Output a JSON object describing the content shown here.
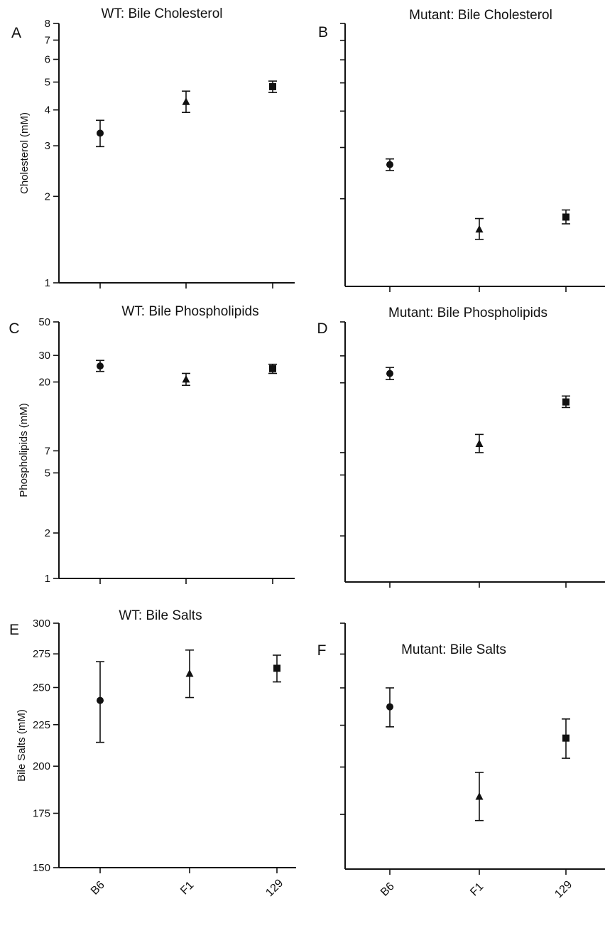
{
  "figure": {
    "categories": [
      "B6",
      "F1",
      "129"
    ],
    "marker_shapes": [
      "circle",
      "triangle",
      "square"
    ],
    "colors": {
      "ink": "#111111",
      "background": "#ffffff"
    }
  },
  "chart_data": [
    {
      "panel": "A",
      "type": "scatter",
      "title": "WT: Bile Cholesterol",
      "ylabel": "Cholesterol (mM)",
      "yscale": "log",
      "ylim": [
        1,
        8
      ],
      "yticks": [
        1,
        2,
        3,
        4,
        5,
        6,
        7,
        8
      ],
      "ytick_labels": true,
      "categories": [
        "B6",
        "F1",
        "129"
      ],
      "xtick_labels": false,
      "values": [
        3.32,
        4.27,
        4.82
      ],
      "error_low": [
        2.98,
        3.92,
        4.6
      ],
      "error_high": [
        3.68,
        4.65,
        5.04
      ]
    },
    {
      "panel": "B",
      "type": "scatter",
      "title": "Mutant: Bile Cholesterol",
      "ylabel": "",
      "yscale": "log",
      "ylim": [
        1,
        8
      ],
      "yticks": [
        1,
        2,
        3,
        4,
        5,
        6,
        7,
        8
      ],
      "ytick_labels": false,
      "categories": [
        "B6",
        "F1",
        "129"
      ],
      "xtick_labels": false,
      "values": [
        2.62,
        1.57,
        1.73
      ],
      "error_low": [
        2.5,
        1.45,
        1.64
      ],
      "error_high": [
        2.74,
        1.71,
        1.83
      ]
    },
    {
      "panel": "C",
      "type": "scatter",
      "title": "WT: Bile Phospholipids",
      "ylabel": "Phospholipids (mM)",
      "yscale": "log",
      "ylim": [
        1,
        50
      ],
      "yticks": [
        1,
        2,
        5,
        7,
        20,
        30,
        50
      ],
      "ytick_labels": true,
      "categories": [
        "B6",
        "F1",
        "129"
      ],
      "xtick_labels": false,
      "values": [
        25.5,
        20.8,
        24.5
      ],
      "error_low": [
        23.5,
        19.0,
        22.8
      ],
      "error_high": [
        27.8,
        22.8,
        26.2
      ]
    },
    {
      "panel": "D",
      "type": "scatter",
      "title": "Mutant: Bile Phospholipids",
      "ylabel": "",
      "yscale": "log",
      "ylim": [
        1,
        50
      ],
      "yticks": [
        1,
        2,
        5,
        7,
        20,
        30,
        50
      ],
      "ytick_labels": false,
      "categories": [
        "B6",
        "F1",
        "129"
      ],
      "xtick_labels": false,
      "values": [
        23.0,
        8.0,
        15.0
      ],
      "error_low": [
        21.0,
        7.0,
        13.8
      ],
      "error_high": [
        25.2,
        9.2,
        16.4
      ]
    },
    {
      "panel": "E",
      "type": "scatter",
      "title": "WT: Bile Salts",
      "ylabel": "Bile Salts (mM)",
      "yscale": "log",
      "ylim": [
        150,
        300
      ],
      "yticks": [
        150,
        175,
        200,
        225,
        250,
        275,
        300
      ],
      "ytick_labels": true,
      "categories": [
        "B6",
        "F1",
        "129"
      ],
      "xtick_labels": true,
      "values": [
        241,
        260,
        264
      ],
      "error_low": [
        214,
        243,
        254
      ],
      "error_high": [
        269,
        278,
        274
      ]
    },
    {
      "panel": "F",
      "type": "scatter",
      "title": "Mutant: Bile Salts",
      "ylabel": "",
      "yscale": "log",
      "ylim": [
        150,
        300
      ],
      "yticks": [
        150,
        175,
        200,
        225,
        250,
        275,
        300
      ],
      "ytick_labels": false,
      "categories": [
        "B6",
        "F1",
        "129"
      ],
      "xtick_labels": true,
      "values": [
        237,
        184,
        217
      ],
      "error_low": [
        224,
        172,
        205
      ],
      "error_high": [
        250,
        197,
        229
      ]
    }
  ]
}
